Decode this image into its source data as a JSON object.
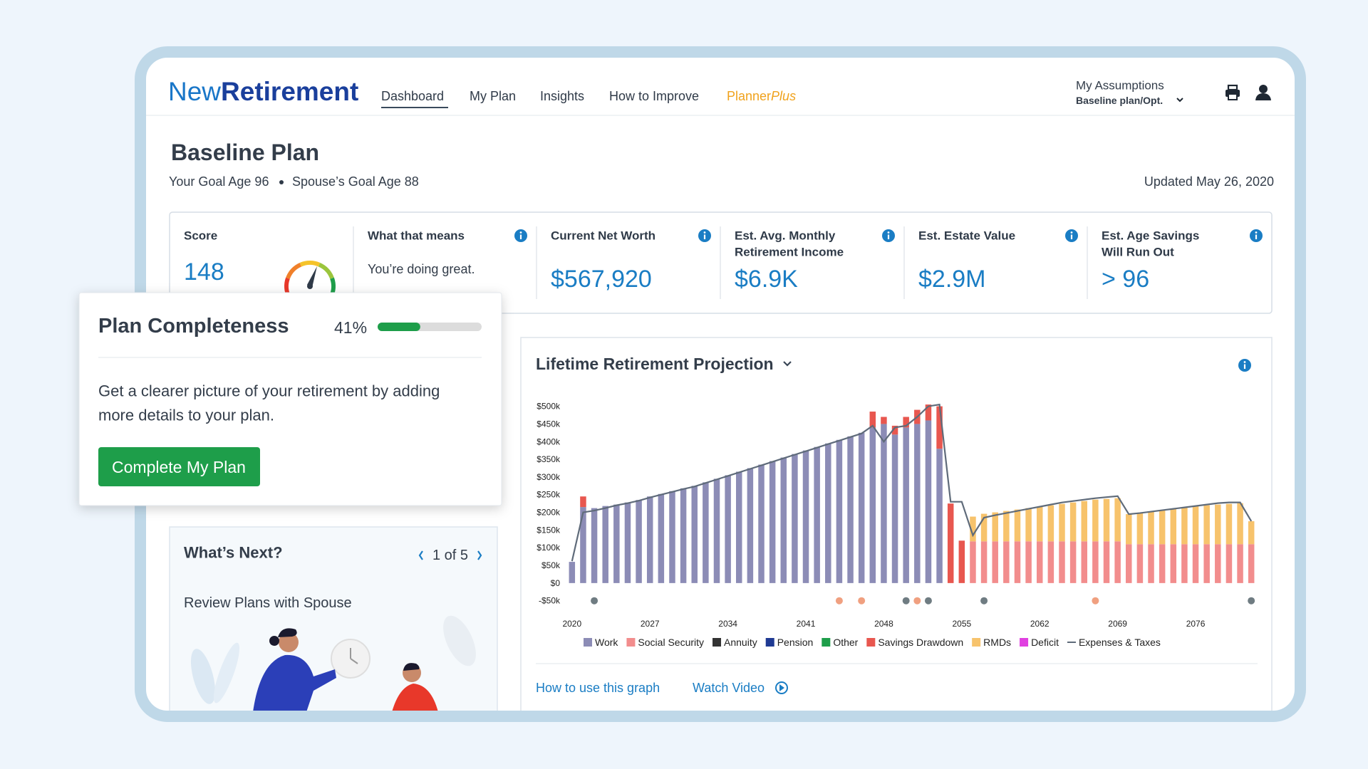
{
  "nav": {
    "logo_a": "New",
    "logo_b": "Retirement",
    "items": [
      "Dashboard",
      "My Plan",
      "Insights",
      "How to Improve"
    ],
    "planner_a": "Planner",
    "planner_b": "Plus",
    "assumptions_label": "My Assumptions",
    "assumptions_value": "Baseline plan/Opt."
  },
  "header": {
    "title": "Baseline Plan",
    "goal_1": "Your Goal Age 96",
    "goal_2": "Spouse’s Goal Age 88",
    "updated": "Updated May 26, 2020"
  },
  "stats": [
    {
      "label": [
        "Score"
      ],
      "value": "148"
    },
    {
      "label": [
        "What that means"
      ],
      "value": "You’re doing great."
    },
    {
      "label": [
        "Current Net Worth"
      ],
      "value": "$567,920"
    },
    {
      "label": [
        "Est. Avg. Monthly",
        "Retirement Income"
      ],
      "value": "$6.9K"
    },
    {
      "label": [
        "Est. Estate Value"
      ],
      "value": "$2.9M"
    },
    {
      "label": [
        "Est. Age Savings",
        "Will Run Out"
      ],
      "value": "> 96"
    }
  ],
  "completeness": {
    "title": "Plan Completeness",
    "progress": {
      "value": 41,
      "label": "41%"
    },
    "text": [
      "Get a clearer picture of your retirement by adding",
      "more details to your plan."
    ],
    "button": "Complete My Plan"
  },
  "whats_next": {
    "title": "What’s Next?",
    "pager": "1 of 5",
    "item": "Review Plans with Spouse"
  },
  "projection": {
    "links": [
      "How to use this graph",
      "Watch Video"
    ]
  },
  "chart_data": {
    "type": "stacked-bar",
    "title": "Lifetime Retirement Projection",
    "x": [
      2020,
      2021,
      2022,
      2023,
      2024,
      2025,
      2026,
      2027,
      2028,
      2029,
      2030,
      2031,
      2032,
      2033,
      2034,
      2035,
      2036,
      2037,
      2038,
      2039,
      2040,
      2041,
      2042,
      2043,
      2044,
      2045,
      2046,
      2047,
      2048,
      2049,
      2050,
      2051,
      2052,
      2053,
      2054,
      2055,
      2056,
      2057,
      2058,
      2059,
      2060,
      2061,
      2062,
      2063,
      2064,
      2065,
      2066,
      2067,
      2068,
      2069,
      2070,
      2071,
      2072,
      2073,
      2074,
      2075,
      2076,
      2077,
      2078,
      2079,
      2080,
      2081
    ],
    "xlim": [
      2019.5,
      2081.5
    ],
    "xticks": [
      2020,
      2027,
      2034,
      2041,
      2048,
      2055,
      2062,
      2069,
      2076
    ],
    "ylim": [
      -50,
      500
    ],
    "yticks": [
      {
        "value": -50,
        "label": "-$50k"
      },
      {
        "value": 0,
        "label": "$0"
      },
      {
        "value": 50,
        "label": "$50k"
      },
      {
        "value": 100,
        "label": "$100k"
      },
      {
        "value": 150,
        "label": "$150k"
      },
      {
        "value": 200,
        "label": "$200k"
      },
      {
        "value": 250,
        "label": "$250k"
      },
      {
        "value": 300,
        "label": "$300k"
      },
      {
        "value": 350,
        "label": "$350k"
      },
      {
        "value": 400,
        "label": "$400k"
      },
      {
        "value": 450,
        "label": "$450k"
      },
      {
        "value": 500,
        "label": "$500k"
      }
    ],
    "series": [
      {
        "name": "Work",
        "color": "#8c8cb6",
        "values": [
          60,
          215,
          212,
          218,
          222,
          228,
          235,
          245,
          252,
          260,
          268,
          275,
          285,
          295,
          305,
          315,
          325,
          335,
          345,
          355,
          365,
          375,
          385,
          395,
          405,
          415,
          425,
          440,
          450,
          420,
          440,
          450,
          460,
          380,
          0,
          0,
          0,
          0,
          0,
          0,
          0,
          0,
          0,
          0,
          0,
          0,
          0,
          0,
          0,
          0,
          0,
          0,
          0,
          0,
          0,
          0,
          0,
          0,
          0,
          0,
          0,
          0
        ]
      },
      {
        "name": "Social Security",
        "color": "#f28d8d",
        "values": [
          0,
          0,
          0,
          0,
          0,
          0,
          0,
          0,
          0,
          0,
          0,
          0,
          0,
          0,
          0,
          0,
          0,
          0,
          0,
          0,
          0,
          0,
          0,
          0,
          0,
          0,
          0,
          0,
          0,
          0,
          0,
          0,
          0,
          0,
          0,
          0,
          118,
          118,
          118,
          118,
          118,
          118,
          118,
          118,
          118,
          118,
          118,
          118,
          118,
          118,
          110,
          110,
          110,
          110,
          110,
          110,
          110,
          110,
          110,
          110,
          110,
          110
        ]
      },
      {
        "name": "Annuity",
        "color": "#333333",
        "values": [
          0,
          0,
          0,
          0,
          0,
          0,
          0,
          0,
          0,
          0,
          0,
          0,
          0,
          0,
          0,
          0,
          0,
          0,
          0,
          0,
          0,
          0,
          0,
          0,
          0,
          0,
          0,
          0,
          0,
          0,
          0,
          0,
          0,
          0,
          0,
          0,
          0,
          0,
          0,
          0,
          0,
          0,
          0,
          0,
          0,
          0,
          0,
          0,
          0,
          0,
          0,
          0,
          0,
          0,
          0,
          0,
          0,
          0,
          0,
          0,
          0,
          0
        ]
      },
      {
        "name": "Pension",
        "color": "#1f3a93",
        "values": [
          0,
          0,
          0,
          0,
          0,
          0,
          0,
          0,
          0,
          0,
          0,
          0,
          0,
          0,
          0,
          0,
          0,
          0,
          0,
          0,
          0,
          0,
          0,
          0,
          0,
          0,
          0,
          0,
          0,
          0,
          0,
          0,
          0,
          0,
          0,
          0,
          0,
          0,
          0,
          0,
          0,
          0,
          0,
          0,
          0,
          0,
          0,
          0,
          0,
          0,
          0,
          0,
          0,
          0,
          0,
          0,
          0,
          0,
          0,
          0,
          0,
          0
        ]
      },
      {
        "name": "Other",
        "color": "#1e9e4a",
        "values": [
          0,
          0,
          0,
          0,
          0,
          0,
          0,
          0,
          0,
          0,
          0,
          0,
          0,
          0,
          0,
          0,
          0,
          0,
          0,
          0,
          0,
          0,
          0,
          0,
          0,
          0,
          0,
          0,
          0,
          0,
          0,
          0,
          0,
          0,
          0,
          0,
          0,
          0,
          0,
          0,
          0,
          0,
          0,
          0,
          0,
          0,
          0,
          0,
          0,
          0,
          0,
          0,
          0,
          0,
          0,
          0,
          0,
          0,
          0,
          0,
          0,
          0
        ]
      },
      {
        "name": "Savings Drawdown",
        "color": "#e8574f",
        "values": [
          0,
          30,
          0,
          0,
          0,
          0,
          0,
          0,
          0,
          0,
          0,
          0,
          0,
          0,
          0,
          0,
          0,
          0,
          0,
          0,
          0,
          0,
          0,
          0,
          0,
          0,
          0,
          45,
          20,
          25,
          30,
          40,
          45,
          120,
          225,
          120,
          0,
          0,
          0,
          0,
          0,
          0,
          0,
          0,
          0,
          0,
          0,
          0,
          0,
          0,
          0,
          0,
          0,
          0,
          0,
          0,
          0,
          0,
          0,
          0,
          0,
          0
        ]
      },
      {
        "name": "RMDs",
        "color": "#f7c36c",
        "values": [
          0,
          0,
          0,
          0,
          0,
          0,
          0,
          0,
          0,
          0,
          0,
          0,
          0,
          0,
          0,
          0,
          0,
          0,
          0,
          0,
          0,
          0,
          0,
          0,
          0,
          0,
          0,
          0,
          0,
          0,
          0,
          0,
          0,
          0,
          0,
          0,
          70,
          78,
          82,
          86,
          90,
          94,
          98,
          102,
          106,
          110,
          114,
          118,
          120,
          122,
          85,
          88,
          92,
          96,
          100,
          104,
          108,
          110,
          112,
          114,
          116,
          65
        ]
      },
      {
        "name": "Deficit",
        "color": "#e040e0",
        "values": [
          0,
          0,
          0,
          0,
          0,
          0,
          0,
          0,
          0,
          0,
          0,
          0,
          0,
          0,
          0,
          0,
          0,
          0,
          0,
          0,
          0,
          0,
          0,
          0,
          0,
          0,
          0,
          0,
          0,
          0,
          0,
          0,
          0,
          0,
          0,
          0,
          0,
          0,
          0,
          0,
          0,
          0,
          0,
          0,
          0,
          0,
          0,
          0,
          0,
          0,
          0,
          0,
          0,
          0,
          0,
          0,
          0,
          0,
          0,
          0,
          0,
          0
        ]
      },
      {
        "name": "Expenses & Taxes",
        "color": "#5f6b7a",
        "type": "line",
        "values": [
          62,
          200,
          205,
          212,
          220,
          226,
          233,
          242,
          250,
          258,
          266,
          273,
          283,
          293,
          303,
          313,
          323,
          333,
          343,
          353,
          363,
          373,
          383,
          393,
          403,
          413,
          423,
          445,
          400,
          440,
          445,
          470,
          500,
          505,
          230,
          230,
          135,
          185,
          192,
          198,
          204,
          210,
          216,
          222,
          228,
          232,
          236,
          240,
          243,
          246,
          195,
          198,
          202,
          206,
          210,
          214,
          218,
          222,
          226,
          228,
          228,
          175
        ]
      }
    ],
    "events": {
      "x": [
        2022,
        2044,
        2046,
        2050,
        2051,
        2052,
        2057,
        2067,
        2081
      ],
      "colors": [
        "#6f7c82",
        "#f0a080",
        "#f0a080",
        "#6f7c82",
        "#f0a080",
        "#6f7c82",
        "#6f7c82",
        "#f0a080",
        "#6f7c82"
      ]
    }
  }
}
